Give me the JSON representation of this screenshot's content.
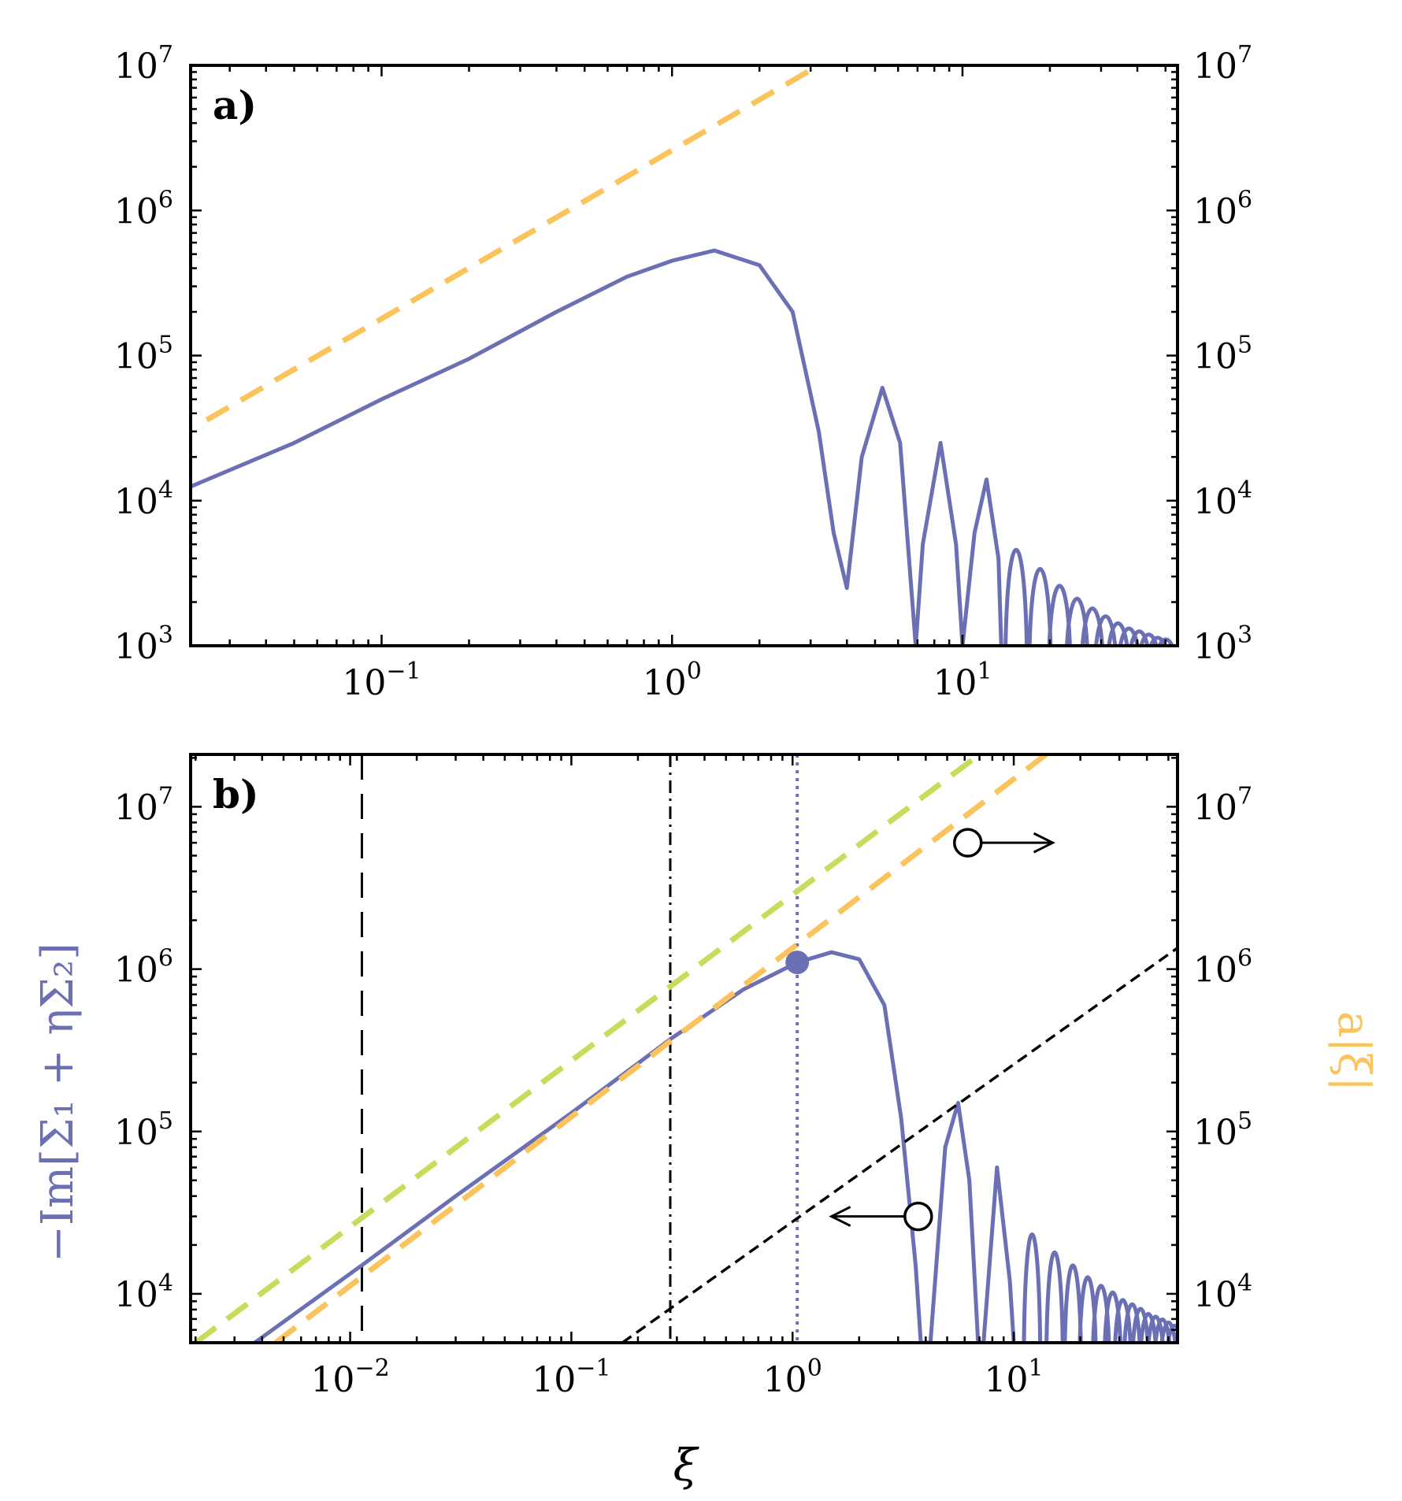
{
  "chart_data": [
    {
      "panel": "a)",
      "type": "line",
      "title": "",
      "xlabel": "",
      "ylabel": "",
      "xscale": "log",
      "yscale": "log",
      "xlim": [
        0.022,
        55
      ],
      "ylim": [
        1000,
        10000000
      ],
      "x_ticks": [
        "10^-1",
        "10^0",
        "10^1"
      ],
      "y_ticks_left": [
        "10^3",
        "10^4",
        "10^5",
        "10^6",
        "10^7"
      ],
      "y_ticks_right": [
        "10^3",
        "10^4",
        "10^5",
        "10^6",
        "10^7"
      ],
      "grid": false,
      "colors": {
        "main": "#6b70b4",
        "dashed_orange": "#fbc35c"
      },
      "series": [
        {
          "style": "solid",
          "color": "#6b70b4",
          "points": [
            [
              0.022,
              12500
            ],
            [
              0.05,
              25000
            ],
            [
              0.1,
              50000
            ],
            [
              0.2,
              95000
            ],
            [
              0.4,
              200000
            ],
            [
              0.7,
              350000
            ],
            [
              1.0,
              450000
            ],
            [
              1.4,
              530000
            ],
            [
              2.0,
              420000
            ],
            [
              2.6,
              200000
            ],
            [
              3.2,
              30000
            ],
            [
              3.6,
              6000
            ],
            [
              4.0,
              2500
            ],
            [
              4.5,
              20000
            ],
            [
              5.3,
              60000
            ],
            [
              6.1,
              25000
            ],
            [
              6.9,
              1000
            ],
            [
              7.3,
              5000
            ],
            [
              8.4,
              25000
            ],
            [
              9.5,
              5000
            ],
            [
              10.0,
              1000
            ],
            [
              11.0,
              6000
            ],
            [
              12.1,
              14000
            ],
            [
              13.3,
              4000
            ],
            [
              13.6,
              1000
            ]
          ],
          "decaying_peaks": [
            [
              15.3,
              9000
            ],
            [
              18.5,
              6000
            ],
            [
              21.6,
              4200
            ],
            [
              24.8,
              3200
            ],
            [
              28.0,
              2600
            ],
            [
              31.1,
              2200
            ],
            [
              34.3,
              1900
            ],
            [
              37.4,
              1700
            ],
            [
              40.6,
              1600
            ],
            [
              43.8,
              1500
            ],
            [
              47.0,
              1400
            ],
            [
              50.1,
              1350
            ]
          ]
        },
        {
          "style": "dashed",
          "color": "#fbc35c",
          "points": [
            [
              0.025,
              36000
            ],
            [
              3.2,
              10000000
            ]
          ]
        }
      ]
    },
    {
      "panel": "b)",
      "type": "line",
      "title": "",
      "xlabel": "ξ",
      "ylabel_left": "−Im[Σ₁ + ηΣ₂]",
      "ylabel_right": "a|ξ|",
      "xscale": "log",
      "yscale": "log",
      "xlim": [
        0.0019,
        55
      ],
      "ylim": [
        5000,
        21000000
      ],
      "x_ticks": [
        "10^-2",
        "10^-1",
        "10^0",
        "10^1"
      ],
      "y_ticks_left": [
        "10^4",
        "10^5",
        "10^6",
        "10^7"
      ],
      "y_ticks_right": [
        "10^4",
        "10^5",
        "10^6",
        "10^7"
      ],
      "grid": false,
      "colors": {
        "main": "#6b70b4",
        "dashed_orange": "#fbc35c",
        "dashed_green": "#c6dc5a",
        "black": "#000000"
      },
      "vertical_lines": [
        {
          "x": 0.0113,
          "style": "dashed",
          "color": "#000000"
        },
        {
          "x": 0.28,
          "style": "dash-dot",
          "color": "#000000"
        },
        {
          "x": 1.05,
          "style": "dotted",
          "color": "#6b70b4"
        }
      ],
      "marker_point": [
        1.05,
        1100000
      ],
      "annotations": [
        {
          "type": "circle-arrow",
          "circle": [
            6.2,
            6000000
          ],
          "arrow_to": [
            15.0,
            6000000
          ],
          "direction": "right"
        },
        {
          "type": "circle-arrow",
          "circle": [
            3.7,
            30000
          ],
          "arrow_to": [
            1.5,
            30000
          ],
          "direction": "left"
        }
      ],
      "series": [
        {
          "style": "solid",
          "color": "#6b70b4",
          "points": [
            [
              0.0037,
              5000
            ],
            [
              0.0113,
              15000
            ],
            [
              0.03,
              40000
            ],
            [
              0.1,
              130000
            ],
            [
              0.28,
              370000
            ],
            [
              0.6,
              750000
            ],
            [
              1.05,
              1100000
            ],
            [
              1.5,
              1270000
            ],
            [
              2.0,
              1150000
            ],
            [
              2.6,
              600000
            ],
            [
              3.1,
              120000
            ],
            [
              3.6,
              15000
            ],
            [
              3.8,
              5000
            ],
            [
              4.2,
              5000
            ],
            [
              4.9,
              80000
            ],
            [
              5.6,
              150000
            ],
            [
              6.3,
              50000
            ],
            [
              6.9,
              5000
            ],
            [
              7.3,
              5000
            ],
            [
              8.4,
              60000
            ],
            [
              9.6,
              12000
            ],
            [
              10.0,
              5000
            ]
          ],
          "decaying_peaks": [
            [
              12.1,
              45000
            ],
            [
              15.3,
              32000
            ],
            [
              18.5,
              25000
            ],
            [
              21.6,
              20000
            ],
            [
              24.8,
              17000
            ],
            [
              28.0,
              15000
            ],
            [
              31.1,
              13000
            ],
            [
              34.3,
              12000
            ],
            [
              37.4,
              11000
            ],
            [
              40.6,
              10000
            ],
            [
              43.8,
              9500
            ],
            [
              47.0,
              9000
            ],
            [
              50.1,
              8500
            ],
            [
              53.3,
              8000
            ]
          ]
        },
        {
          "style": "dashed",
          "color": "#c6dc5a",
          "points": [
            [
              0.002,
              5000
            ],
            [
              7.0,
              21000000
            ]
          ]
        },
        {
          "style": "dashed",
          "color": "#fbc35c",
          "points": [
            [
              0.0046,
              5000
            ],
            [
              14.0,
              21000000
            ]
          ]
        },
        {
          "style": "dashed-fine",
          "color": "#000000",
          "points": [
            [
              0.17,
              5000
            ],
            [
              55.0,
              1350000
            ]
          ]
        }
      ]
    }
  ]
}
